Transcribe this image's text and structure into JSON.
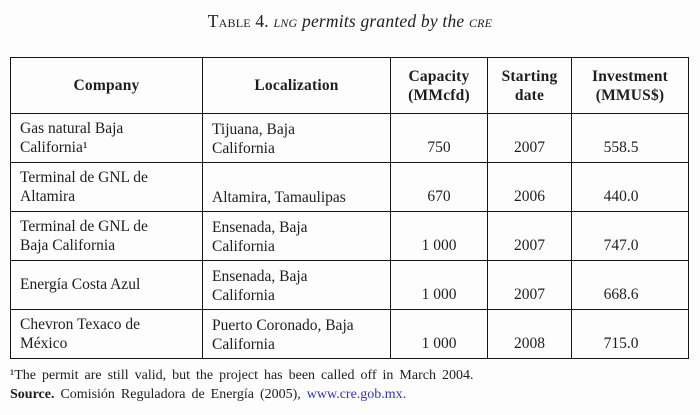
{
  "colors": {
    "text": "#1e1e1e",
    "table_border": "#151515",
    "link_blue": "#3434bb",
    "background": "#fdfdfd"
  },
  "caption": {
    "label": "Table 4.",
    "acronym1": "lng",
    "middle": "permits granted by the",
    "acronym2": "cre"
  },
  "table": {
    "headers": [
      "Company",
      "Localization",
      "Capacity (MMcfd)",
      "Starting date",
      "Investment (MMUS$)"
    ],
    "rows": [
      {
        "company": "Gas natural Baja\nCalifornia¹",
        "localization": "Tijuana, Baja\nCalifornia",
        "capacity": "750",
        "starting_date": "2007",
        "investment": "558.5"
      },
      {
        "company": "Terminal de GNL de\nAltamira",
        "localization": "Altamira, Tamaulipas",
        "capacity": "670",
        "starting_date": "2006",
        "investment": "440.0"
      },
      {
        "company": "Terminal de GNL de\nBaja California",
        "localization": "Ensenada, Baja\nCalifornia",
        "capacity": "1 000",
        "starting_date": "2007",
        "investment": "747.0"
      },
      {
        "company": "Energía Costa Azul",
        "localization": "Ensenada, Baja\nCalifornia",
        "capacity": "1 000",
        "starting_date": "2007",
        "investment": "668.6"
      },
      {
        "company": "Chevron Texaco de\nMéxico",
        "localization": "Puerto Coronado, Baja\nCalifornia",
        "capacity": "1 000",
        "starting_date": "2008",
        "investment": "715.0"
      }
    ]
  },
  "footnote": "¹The permit are still valid, but the project has been called off in March 2004.",
  "source": {
    "label": "Source.",
    "text": "Comisión Reguladora de Energía (2005),",
    "link": "www.cre.gob.mx",
    "period": "."
  }
}
